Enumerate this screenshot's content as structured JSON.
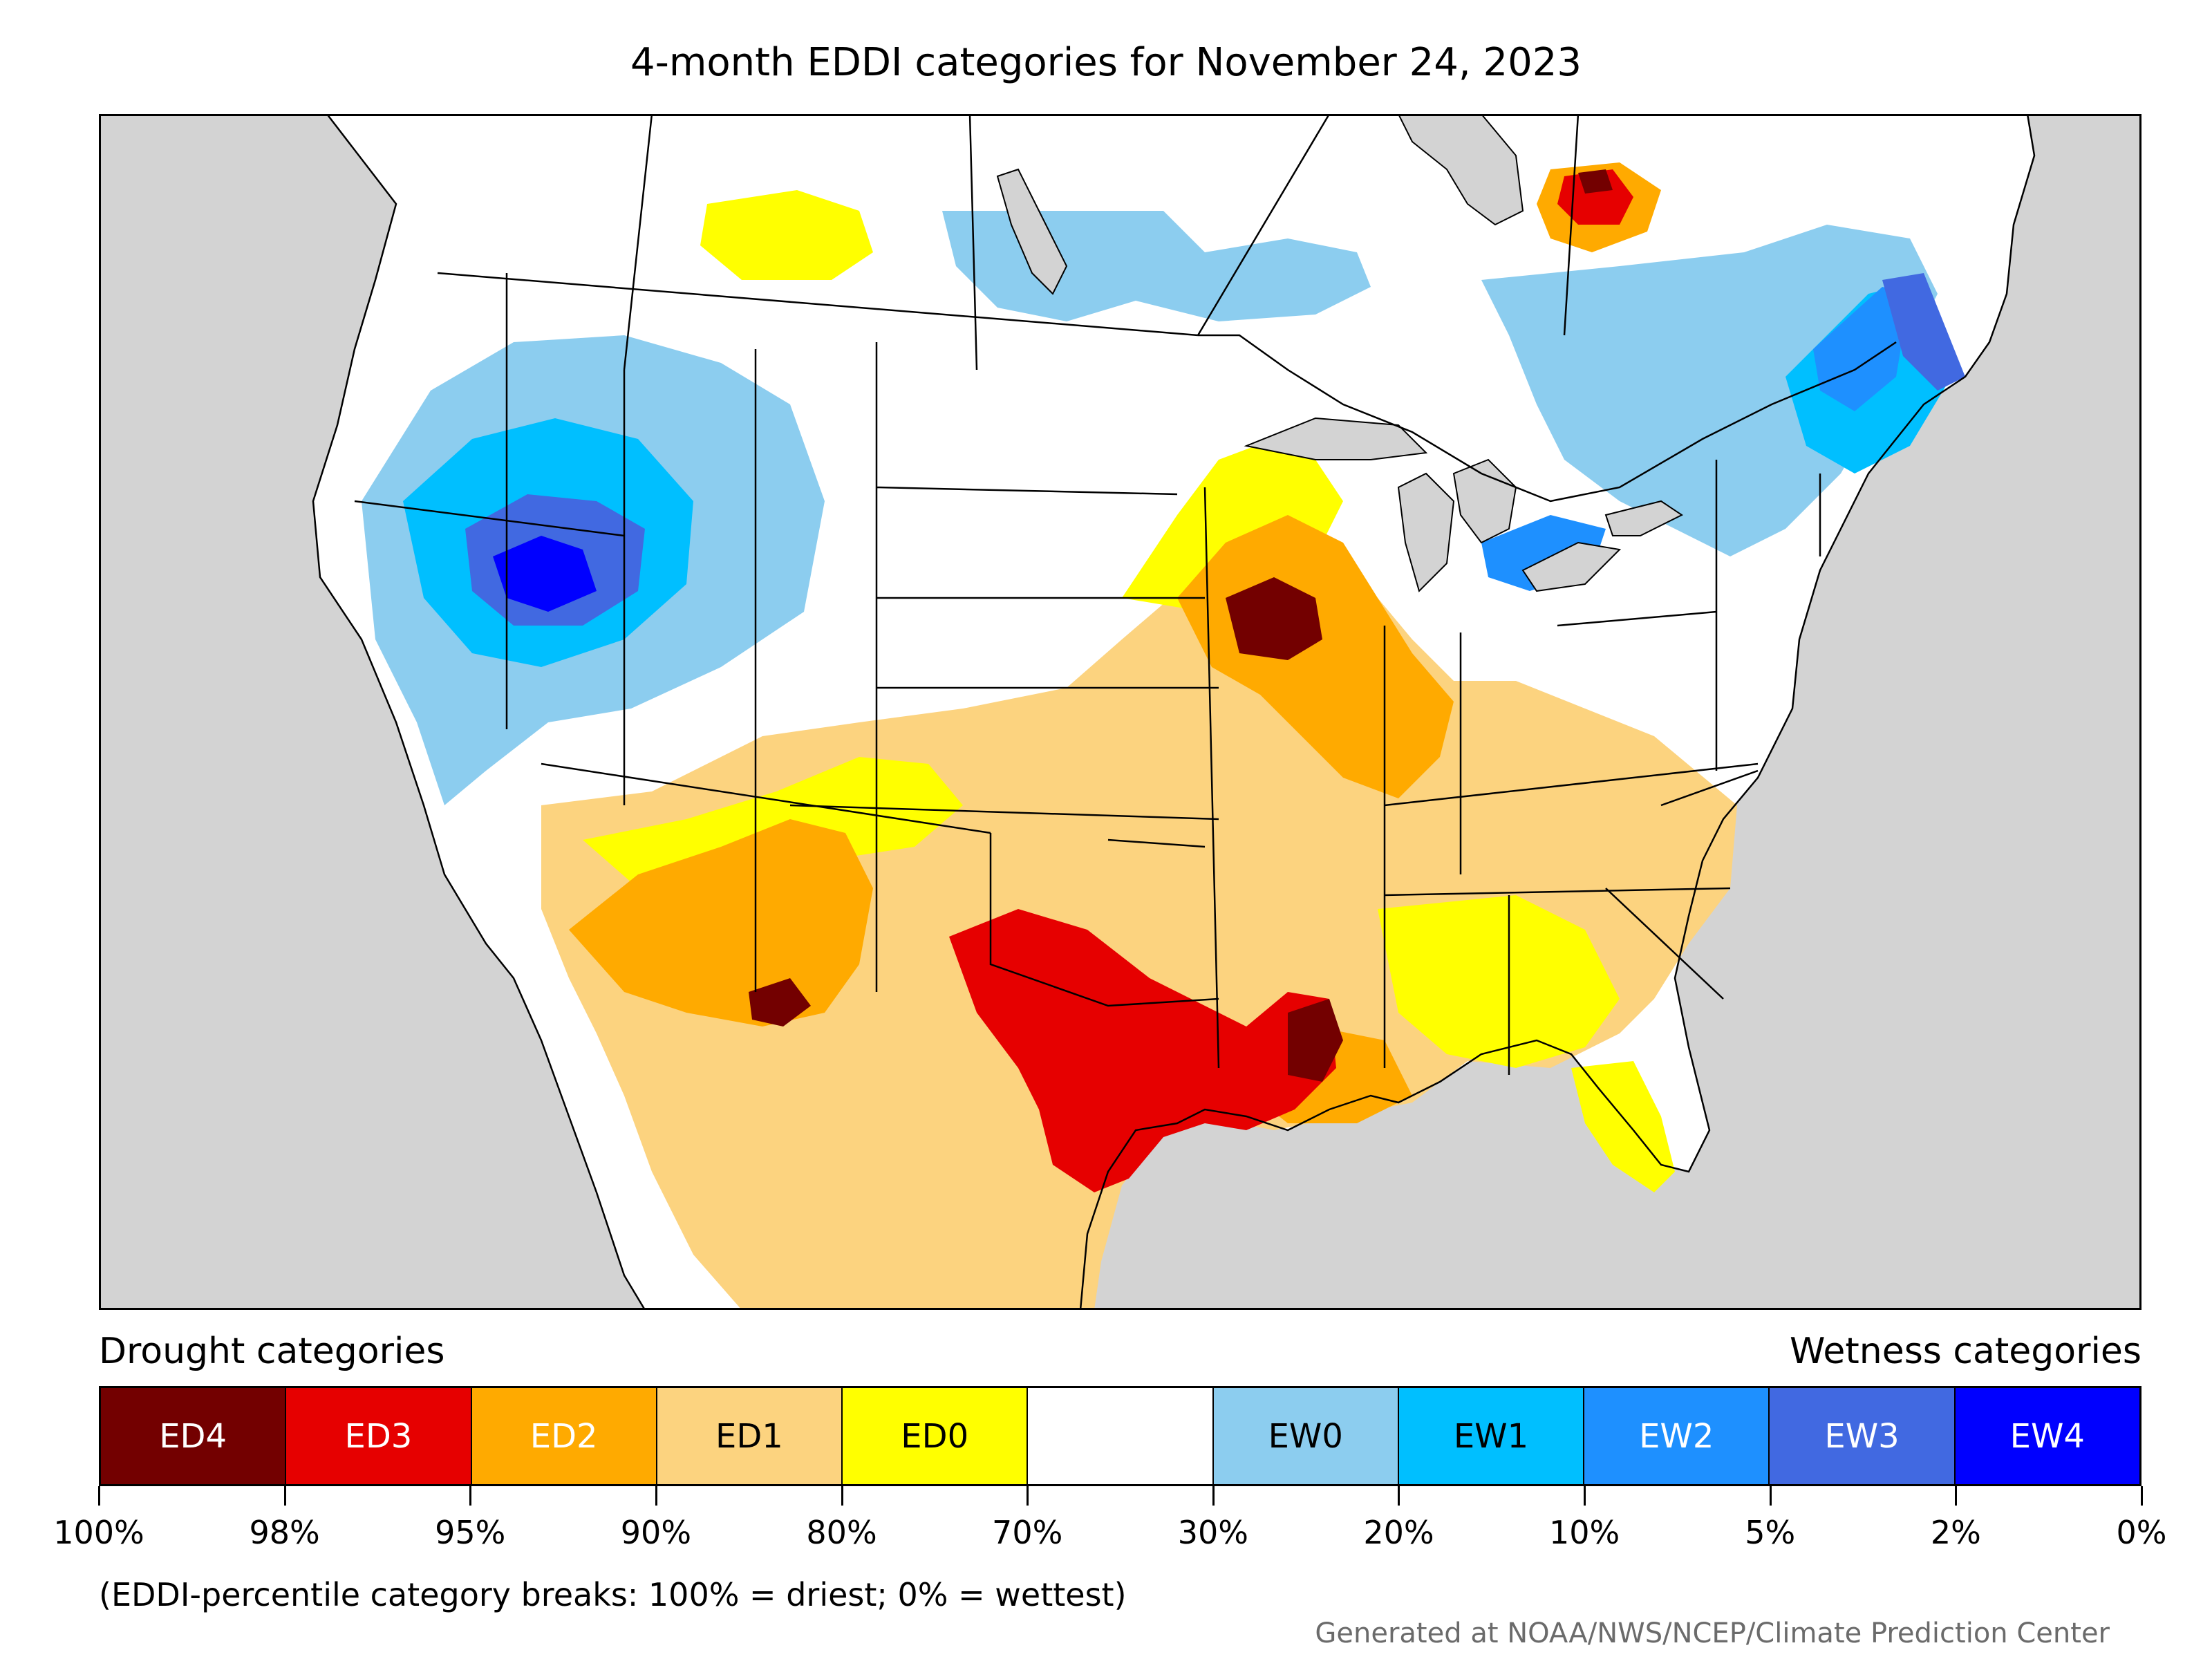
{
  "title": "4-month EDDI categories for November 24, 2023",
  "legend": {
    "drought_heading": "Drought categories",
    "wetness_heading": "Wetness categories",
    "categories": [
      {
        "label": "ED4",
        "color": "#730000",
        "text_color": "#ffffff"
      },
      {
        "label": "ED3",
        "color": "#e60000",
        "text_color": "#ffffff"
      },
      {
        "label": "ED2",
        "color": "#ffaa00",
        "text_color": "#ffffff"
      },
      {
        "label": "ED1",
        "color": "#fcd37f",
        "text_color": "#000000"
      },
      {
        "label": "ED0",
        "color": "#ffff00",
        "text_color": "#000000"
      },
      {
        "label": "",
        "color": "#ffffff",
        "text_color": "#000000"
      },
      {
        "label": "EW0",
        "color": "#8ccdef",
        "text_color": "#000000"
      },
      {
        "label": "EW1",
        "color": "#00bfff",
        "text_color": "#000000"
      },
      {
        "label": "EW2",
        "color": "#1e90ff",
        "text_color": "#ffffff"
      },
      {
        "label": "EW3",
        "color": "#4169e1",
        "text_color": "#ffffff"
      },
      {
        "label": "EW4",
        "color": "#0000ff",
        "text_color": "#ffffff"
      }
    ],
    "tick_labels": [
      "100%",
      "98%",
      "95%",
      "90%",
      "80%",
      "70%",
      "30%",
      "20%",
      "10%",
      "5%",
      "2%",
      "0%"
    ]
  },
  "note": "(EDDI-percentile category breaks: 100% = driest; 0% = wettest)",
  "credit": "Generated at NOAA/NWS/NCEP/Climate Prediction Center",
  "map": {
    "ocean_color": "#d3d3d3",
    "lake_color": "#d3d3d3",
    "land_default_color": "#ffffff",
    "region_categories": [
      {
        "region": "Texas / Oklahoma / Louisiana",
        "category": "ED3"
      },
      {
        "region": "Iowa / Wisconsin",
        "category": "ED2"
      },
      {
        "region": "Great Basin",
        "category": "EW3"
      },
      {
        "region": "New England / Quebec",
        "category": "EW2"
      },
      {
        "region": "Southwest",
        "category": "ED1"
      }
    ]
  }
}
